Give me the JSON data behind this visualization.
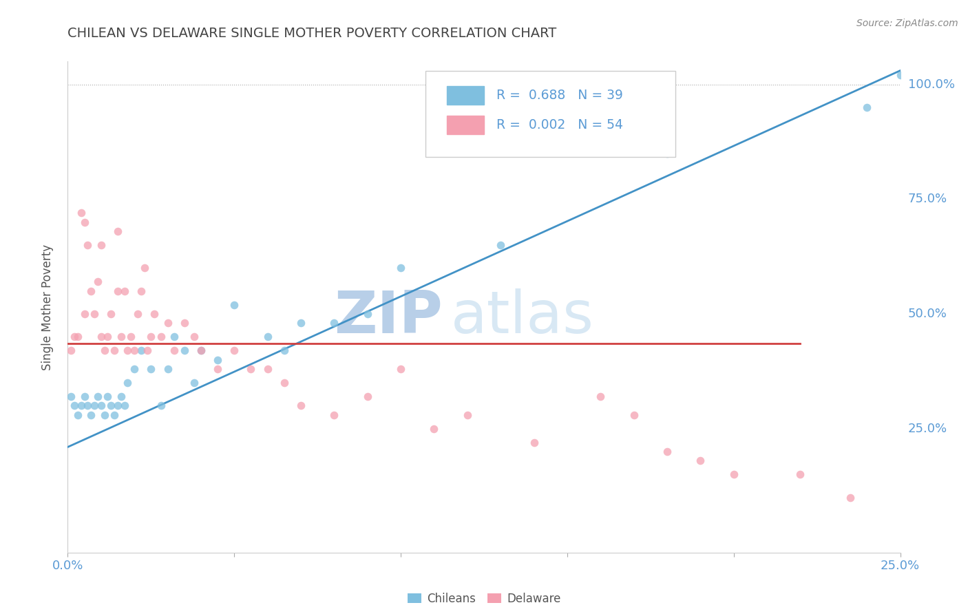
{
  "title": "CHILEAN VS DELAWARE SINGLE MOTHER POVERTY CORRELATION CHART",
  "source_text": "Source: ZipAtlas.com",
  "ylabel": "Single Mother Poverty",
  "xlim": [
    0.0,
    0.25
  ],
  "ylim": [
    0.0,
    1.05
  ],
  "chilean_color": "#7fbfdf",
  "delaware_color": "#f4a0b0",
  "chilean_line_color": "#4292c6",
  "delaware_line_color": "#d04040",
  "legend_label_chilean": "Chileans",
  "legend_label_delaware": "Delaware",
  "watermark_zip": "ZIP",
  "watermark_atlas": "atlas",
  "watermark_color": "#ccddf0",
  "title_color": "#444444",
  "source_color": "#888888",
  "ch_line_x0": 0.0,
  "ch_line_y0": 0.21,
  "ch_line_x1": 0.25,
  "ch_line_y1": 1.03,
  "de_line_x0": 0.0,
  "de_line_y0": 0.435,
  "de_line_x1": 0.22,
  "de_line_y1": 0.435,
  "chilean_x": [
    0.001,
    0.002,
    0.003,
    0.004,
    0.005,
    0.006,
    0.007,
    0.008,
    0.009,
    0.01,
    0.011,
    0.012,
    0.013,
    0.014,
    0.015,
    0.016,
    0.017,
    0.018,
    0.02,
    0.022,
    0.025,
    0.028,
    0.03,
    0.032,
    0.035,
    0.038,
    0.04,
    0.045,
    0.05,
    0.06,
    0.065,
    0.07,
    0.08,
    0.09,
    0.1,
    0.13,
    0.18,
    0.24,
    0.25
  ],
  "chilean_y": [
    0.32,
    0.3,
    0.28,
    0.3,
    0.32,
    0.3,
    0.28,
    0.3,
    0.32,
    0.3,
    0.28,
    0.32,
    0.3,
    0.28,
    0.3,
    0.32,
    0.3,
    0.35,
    0.38,
    0.42,
    0.38,
    0.3,
    0.38,
    0.45,
    0.42,
    0.35,
    0.42,
    0.4,
    0.52,
    0.45,
    0.42,
    0.48,
    0.48,
    0.5,
    0.6,
    0.65,
    0.85,
    0.95,
    1.02
  ],
  "delaware_x": [
    0.001,
    0.002,
    0.003,
    0.004,
    0.005,
    0.005,
    0.006,
    0.007,
    0.008,
    0.009,
    0.01,
    0.01,
    0.011,
    0.012,
    0.013,
    0.014,
    0.015,
    0.015,
    0.016,
    0.017,
    0.018,
    0.019,
    0.02,
    0.021,
    0.022,
    0.023,
    0.024,
    0.025,
    0.026,
    0.028,
    0.03,
    0.032,
    0.035,
    0.038,
    0.04,
    0.045,
    0.05,
    0.055,
    0.06,
    0.065,
    0.07,
    0.08,
    0.09,
    0.1,
    0.11,
    0.12,
    0.14,
    0.16,
    0.17,
    0.18,
    0.19,
    0.2,
    0.22,
    0.235
  ],
  "delaware_y": [
    0.42,
    0.45,
    0.45,
    0.72,
    0.7,
    0.5,
    0.65,
    0.55,
    0.5,
    0.57,
    0.65,
    0.45,
    0.42,
    0.45,
    0.5,
    0.42,
    0.68,
    0.55,
    0.45,
    0.55,
    0.42,
    0.45,
    0.42,
    0.5,
    0.55,
    0.6,
    0.42,
    0.45,
    0.5,
    0.45,
    0.48,
    0.42,
    0.48,
    0.45,
    0.42,
    0.38,
    0.42,
    0.38,
    0.38,
    0.35,
    0.3,
    0.28,
    0.32,
    0.38,
    0.25,
    0.28,
    0.22,
    0.32,
    0.28,
    0.2,
    0.18,
    0.15,
    0.15,
    0.1
  ]
}
